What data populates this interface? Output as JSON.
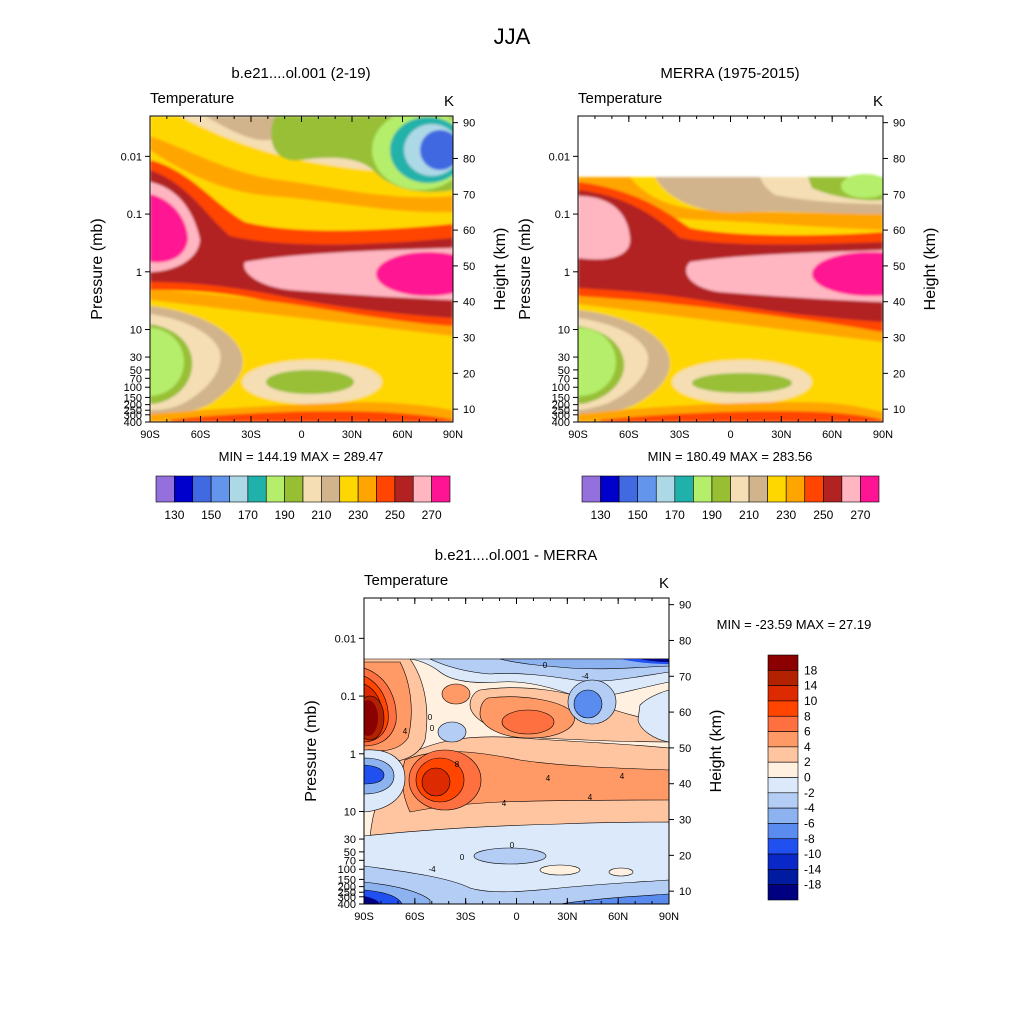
{
  "figure": {
    "title": "JJA"
  },
  "axes_common": {
    "pressure_label": "Pressure (mb)",
    "height_label": "Height (km)",
    "x_ticks": [
      "90S",
      "60S",
      "30S",
      "0",
      "30N",
      "60N",
      "90N"
    ],
    "pressure_ticks": [
      {
        "label": "0.01",
        "value": 0.01
      },
      {
        "label": "0.1",
        "value": 0.1
      },
      {
        "label": "1",
        "value": 1
      },
      {
        "label": "10",
        "value": 10
      },
      {
        "label": "30",
        "value": 30
      },
      {
        "label": "50",
        "value": 50
      },
      {
        "label": "70",
        "value": 70
      },
      {
        "label": "100",
        "value": 100
      },
      {
        "label": "150",
        "value": 150
      },
      {
        "label": "200",
        "value": 200
      },
      {
        "label": "250",
        "value": 250
      },
      {
        "label": "300",
        "value": 300
      },
      {
        "label": "400",
        "value": 400
      }
    ],
    "height_ticks": [
      {
        "label": "90",
        "value": 90
      },
      {
        "label": "80",
        "value": 80
      },
      {
        "label": "70",
        "value": 70
      },
      {
        "label": "60",
        "value": 60
      },
      {
        "label": "50",
        "value": 50
      },
      {
        "label": "40",
        "value": 40
      },
      {
        "label": "30",
        "value": 30
      },
      {
        "label": "20",
        "value": 20
      },
      {
        "label": "10",
        "value": 10
      }
    ]
  },
  "chart_data": [
    {
      "type": "contour",
      "id": "model",
      "title": "b.e21....ol.001 (2-19)",
      "left_string": "Temperature",
      "right_string": "K",
      "x_range": [
        -90,
        90
      ],
      "ylim_mb": [
        400,
        0.002
      ],
      "top_data_mb": 0.002,
      "stats": "MIN = 144.19  MAX = 289.47",
      "colorbar": {
        "labels": [
          "130",
          "150",
          "170",
          "190",
          "210",
          "230",
          "250",
          "270"
        ],
        "colors": [
          "#9370db",
          "#0000cd",
          "#4169e1",
          "#6495ed",
          "#add8e6",
          "#20b2aa",
          "#b4ee6a",
          "#98bf34",
          "#f5deb3",
          "#d2b48c",
          "#ffd700",
          "#ffa500",
          "#ff4500",
          "#b22222",
          "#ffb6c1",
          "#ff1493"
        ]
      },
      "levels": [
        120,
        130,
        140,
        150,
        160,
        170,
        180,
        190,
        200,
        210,
        220,
        230,
        240,
        250,
        260,
        270
      ],
      "bands": [
        {
          "min": 120,
          "color": "#9370db"
        },
        {
          "min": 130,
          "color": "#0000cd"
        },
        {
          "min": 140,
          "color": "#4169e1"
        },
        {
          "min": 150,
          "color": "#6495ed"
        },
        {
          "min": 160,
          "color": "#add8e6"
        },
        {
          "min": 170,
          "color": "#20b2aa"
        },
        {
          "min": 180,
          "color": "#b4ee6a"
        },
        {
          "min": 190,
          "color": "#98bf34"
        },
        {
          "min": 200,
          "color": "#f5deb3"
        },
        {
          "min": 210,
          "color": "#d2b48c"
        },
        {
          "min": 220,
          "color": "#ffd700"
        },
        {
          "min": 230,
          "color": "#ffa500"
        },
        {
          "min": 240,
          "color": "#ff4500"
        },
        {
          "min": 250,
          "color": "#b22222"
        },
        {
          "min": 260,
          "color": "#ffb6c1"
        },
        {
          "min": 270,
          "color": "#ff1493"
        }
      ]
    },
    {
      "type": "contour",
      "id": "merra",
      "title": "MERRA (1975-2015)",
      "left_string": "Temperature",
      "right_string": "K",
      "x_range": [
        -90,
        90
      ],
      "ylim_mb": [
        400,
        0.002
      ],
      "top_data_mb": 0.017,
      "stats": "MIN = 180.49  MAX = 283.56",
      "colorbar": {
        "labels": [
          "130",
          "150",
          "170",
          "190",
          "210",
          "230",
          "250",
          "270"
        ],
        "colors": [
          "#9370db",
          "#0000cd",
          "#4169e1",
          "#6495ed",
          "#add8e6",
          "#20b2aa",
          "#b4ee6a",
          "#98bf34",
          "#f5deb3",
          "#d2b48c",
          "#ffd700",
          "#ffa500",
          "#ff4500",
          "#b22222",
          "#ffb6c1",
          "#ff1493"
        ]
      },
      "levels": [
        120,
        130,
        140,
        150,
        160,
        170,
        180,
        190,
        200,
        210,
        220,
        230,
        240,
        250,
        260,
        270
      ],
      "bands": [
        {
          "min": 120,
          "color": "#9370db"
        },
        {
          "min": 130,
          "color": "#0000cd"
        },
        {
          "min": 140,
          "color": "#4169e1"
        },
        {
          "min": 150,
          "color": "#6495ed"
        },
        {
          "min": 160,
          "color": "#add8e6"
        },
        {
          "min": 170,
          "color": "#20b2aa"
        },
        {
          "min": 180,
          "color": "#b4ee6a"
        },
        {
          "min": 190,
          "color": "#98bf34"
        },
        {
          "min": 200,
          "color": "#f5deb3"
        },
        {
          "min": 210,
          "color": "#d2b48c"
        },
        {
          "min": 220,
          "color": "#ffd700"
        },
        {
          "min": 230,
          "color": "#ffa500"
        },
        {
          "min": 240,
          "color": "#ff4500"
        },
        {
          "min": 250,
          "color": "#b22222"
        },
        {
          "min": 260,
          "color": "#ffb6c1"
        },
        {
          "min": 270,
          "color": "#ff1493"
        }
      ]
    },
    {
      "type": "contour",
      "id": "diff",
      "title": "b.e21....ol.001 - MERRA",
      "left_string": "Temperature",
      "right_string": "K",
      "x_range": [
        -90,
        90
      ],
      "ylim_mb": [
        400,
        0.002
      ],
      "top_data_mb": 0.017,
      "stats": "MIN = -23.59  MAX =  27.19",
      "colorbar": {
        "labels": [
          "18",
          "14",
          "10",
          "8",
          "6",
          "4",
          "2",
          "0",
          "-2",
          "-4",
          "-6",
          "-8",
          "-10",
          "-14",
          "-18"
        ],
        "colors": [
          "#8b0000",
          "#b22200",
          "#dd2a00",
          "#ff4500",
          "#ff7040",
          "#ff9966",
          "#ffc4a0",
          "#fff0e0",
          "#dce9fa",
          "#b4cdf5",
          "#8db2f0",
          "#5a8cf0",
          "#2050f0",
          "#0a28c8",
          "#001aa0",
          "#000080"
        ]
      },
      "levels": [
        -18,
        -14,
        -10,
        -8,
        -6,
        -4,
        -2,
        0,
        2,
        4,
        6,
        8,
        10,
        14,
        18
      ],
      "contour_labels": [
        "4",
        "0",
        "8",
        "4",
        "4",
        "0",
        "-4",
        "4",
        "4",
        "0",
        "0",
        "0",
        "-4"
      ],
      "bands": [
        {
          "min": -100,
          "color": "#000080"
        },
        {
          "min": -18,
          "color": "#001aa0"
        },
        {
          "min": -14,
          "color": "#0a28c8"
        },
        {
          "min": -10,
          "color": "#2050f0"
        },
        {
          "min": -8,
          "color": "#5a8cf0"
        },
        {
          "min": -6,
          "color": "#8db2f0"
        },
        {
          "min": -4,
          "color": "#b4cdf5"
        },
        {
          "min": -2,
          "color": "#dce9fa"
        },
        {
          "min": 0,
          "color": "#fff0e0"
        },
        {
          "min": 2,
          "color": "#ffc4a0"
        },
        {
          "min": 4,
          "color": "#ff9966"
        },
        {
          "min": 6,
          "color": "#ff7040"
        },
        {
          "min": 8,
          "color": "#ff4500"
        },
        {
          "min": 10,
          "color": "#dd2a00"
        },
        {
          "min": 14,
          "color": "#b22200"
        },
        {
          "min": 18,
          "color": "#8b0000"
        }
      ]
    }
  ]
}
